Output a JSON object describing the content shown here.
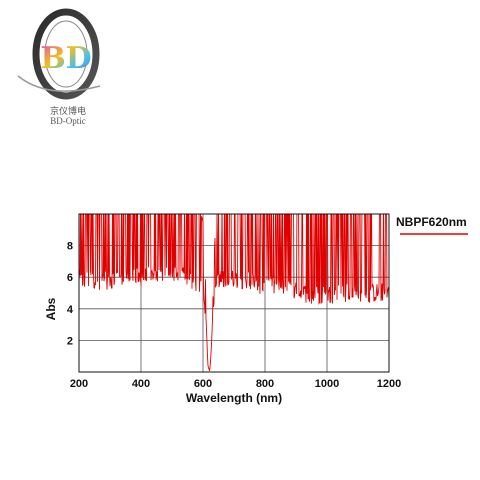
{
  "brand": {
    "logo_letters": "BD",
    "chinese_name": "京仪博电",
    "english_name": "BD-Optic"
  },
  "chart_data": {
    "type": "line",
    "title": "",
    "xlabel": "Wavelength (nm)",
    "ylabel": "Abs",
    "xlim": [
      200,
      1200
    ],
    "ylim": [
      0,
      10
    ],
    "xticks": [
      200,
      400,
      600,
      800,
      1000,
      1200
    ],
    "yticks": [
      2,
      4,
      6,
      8
    ],
    "grid": true,
    "legend_position": "top-right",
    "series": [
      {
        "name": "NBPF620nm",
        "color": "#e00000",
        "description_points": {
          "x": [
            200,
            250,
            300,
            350,
            400,
            450,
            500,
            550,
            580,
            600,
            610,
            615,
            620,
            625,
            630,
            640,
            650,
            700,
            750,
            770,
            780,
            800,
            850,
            900,
            950,
            1000,
            1050,
            1100,
            1150,
            1200
          ],
          "y_low": [
            5.3,
            5.2,
            5.2,
            5.3,
            5.4,
            5.5,
            5.5,
            5.4,
            5.0,
            4.9,
            3.0,
            0.5,
            0.0,
            0.3,
            3.0,
            4.8,
            5.2,
            5.3,
            5.2,
            5.3,
            4.5,
            5.0,
            4.7,
            4.5,
            4.3,
            4.3,
            4.4,
            4.3,
            4.4,
            4.5
          ],
          "y_high": [
            10,
            10,
            10,
            10,
            10,
            10,
            10,
            10,
            10,
            8.5,
            4.0,
            1.0,
            0.1,
            0.8,
            4.0,
            8.0,
            10,
            10,
            10,
            10,
            9.0,
            10,
            10,
            10,
            10,
            10,
            10,
            10,
            10,
            10
          ]
        }
      }
    ]
  }
}
